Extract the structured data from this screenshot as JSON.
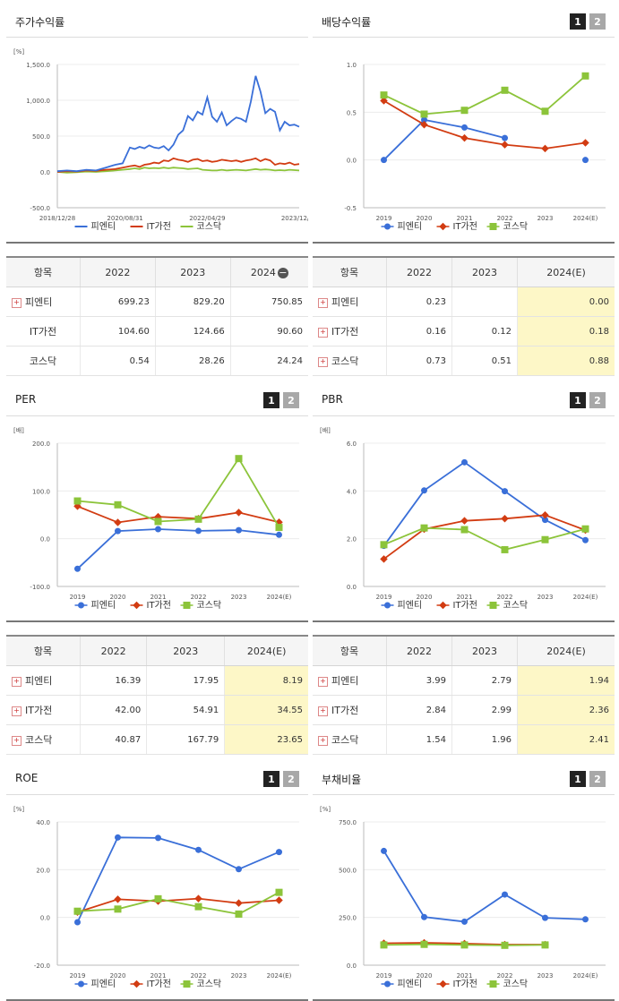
{
  "legend_labels": [
    "피엔티",
    "IT가전",
    "코스닥"
  ],
  "colors": {
    "s1": "#3a6fd8",
    "s2": "#d23c12",
    "s3": "#8cc43a"
  },
  "pager": {
    "one": "1",
    "two": "2"
  },
  "panels": {
    "price": {
      "title": "주가수익률",
      "chart_data": {
        "type": "line",
        "unit": "[%]",
        "y_ticks": [
          "1,500.0",
          "1,000.0",
          "500.0",
          "0.0",
          "-500.0"
        ],
        "x_ticks": [
          "2018/12/28",
          "2020/08/31",
          "2022/04/29",
          "2023/12/28"
        ],
        "ylim": [
          -500,
          1500
        ],
        "x": [
          0,
          0.04,
          0.08,
          0.12,
          0.16,
          0.2,
          0.24,
          0.27,
          0.3,
          0.32,
          0.34,
          0.36,
          0.38,
          0.4,
          0.42,
          0.44,
          0.46,
          0.48,
          0.5,
          0.52,
          0.54,
          0.56,
          0.58,
          0.6,
          0.62,
          0.64,
          0.66,
          0.68,
          0.7,
          0.72,
          0.74,
          0.76,
          0.78,
          0.8,
          0.82,
          0.84,
          0.86,
          0.88,
          0.9,
          0.92,
          0.94,
          0.96,
          0.98,
          1.0
        ],
        "series": [
          {
            "name": "피엔티",
            "values": [
              10,
              20,
              10,
              30,
              20,
              60,
              100,
              120,
              340,
              320,
              350,
              330,
              370,
              340,
              330,
              360,
              300,
              380,
              520,
              580,
              780,
              720,
              840,
              800,
              1040,
              770,
              700,
              830,
              650,
              710,
              760,
              740,
              700,
              980,
              1340,
              1120,
              820,
              880,
              840,
              580,
              700,
              650,
              660,
              630
            ]
          },
          {
            "name": "IT가전",
            "values": [
              0,
              10,
              5,
              20,
              15,
              30,
              40,
              60,
              80,
              90,
              70,
              100,
              110,
              130,
              120,
              160,
              150,
              190,
              170,
              160,
              140,
              170,
              180,
              150,
              160,
              140,
              150,
              170,
              160,
              150,
              160,
              140,
              160,
              170,
              190,
              150,
              180,
              160,
              100,
              120,
              110,
              130,
              100,
              110
            ]
          },
          {
            "name": "코스닥",
            "values": [
              0,
              -10,
              -5,
              5,
              0,
              10,
              20,
              30,
              40,
              50,
              40,
              60,
              50,
              55,
              50,
              60,
              50,
              60,
              55,
              50,
              40,
              45,
              50,
              30,
              25,
              20,
              20,
              30,
              20,
              25,
              30,
              25,
              20,
              30,
              40,
              30,
              35,
              30,
              20,
              25,
              20,
              30,
              25,
              20
            ]
          }
        ]
      }
    },
    "dividend": {
      "title": "배당수익률",
      "chart_data": {
        "type": "line",
        "y_ticks": [
          "1.0",
          "0.5",
          "0.0",
          "-0.5"
        ],
        "categories": [
          "2019",
          "2020",
          "2021",
          "2022",
          "2023",
          "2024(E)"
        ],
        "ylim": [
          -0.5,
          1.0
        ],
        "series": [
          {
            "name": "피엔티",
            "values": [
              0.0,
              0.42,
              0.34,
              0.23,
              null,
              0.0
            ],
            "gap_after": 3
          },
          {
            "name": "IT가전",
            "values": [
              0.62,
              0.37,
              0.23,
              0.16,
              0.12,
              0.18
            ]
          },
          {
            "name": "코스닥",
            "values": [
              0.68,
              0.48,
              0.52,
              0.73,
              0.51,
              0.88
            ]
          }
        ]
      }
    },
    "per": {
      "title": "PER",
      "chart_data": {
        "type": "line",
        "unit": "[배]",
        "y_ticks": [
          "200.0",
          "100.0",
          "0.0",
          "-100.0"
        ],
        "categories": [
          "2019",
          "2020",
          "2021",
          "2022",
          "2023",
          "2024(E)"
        ],
        "ylim": [
          -100,
          200
        ],
        "series": [
          {
            "name": "피엔티",
            "values": [
              -63,
              16,
              20,
              16.39,
              17.95,
              8.19
            ]
          },
          {
            "name": "IT가전",
            "values": [
              68,
              34,
              46,
              42.0,
              54.91,
              34.55
            ]
          },
          {
            "name": "코스닥",
            "values": [
              79,
              71,
              36,
              40.87,
              167.79,
              23.65
            ]
          }
        ]
      }
    },
    "pbr": {
      "title": "PBR",
      "chart_data": {
        "type": "line",
        "unit": "[배]",
        "y_ticks": [
          "6.0",
          "4.0",
          "2.0",
          "0.0"
        ],
        "categories": [
          "2019",
          "2020",
          "2021",
          "2022",
          "2023",
          "2024(E)"
        ],
        "ylim": [
          0,
          6
        ],
        "series": [
          {
            "name": "피엔티",
            "values": [
              1.7,
              4.02,
              5.2,
              3.99,
              2.79,
              1.94
            ]
          },
          {
            "name": "IT가전",
            "values": [
              1.15,
              2.4,
              2.75,
              2.84,
              2.99,
              2.36
            ]
          },
          {
            "name": "코스닥",
            "values": [
              1.75,
              2.45,
              2.38,
              1.54,
              1.96,
              2.41
            ]
          }
        ]
      }
    },
    "roe": {
      "title": "ROE",
      "chart_data": {
        "type": "line",
        "unit": "[%]",
        "y_ticks": [
          "40.0",
          "20.0",
          "0.0",
          "-20.0"
        ],
        "categories": [
          "2019",
          "2020",
          "2021",
          "2022",
          "2023",
          "2024(E)"
        ],
        "ylim": [
          -20,
          40
        ],
        "series": [
          {
            "name": "피엔티",
            "values": [
              -2,
              33.5,
              33.3,
              28.3,
              20.2,
              27.4
            ]
          },
          {
            "name": "IT가전",
            "values": [
              2.2,
              7.6,
              6.8,
              7.9,
              6.0,
              7.2
            ]
          },
          {
            "name": "코스닥",
            "values": [
              2.6,
              3.5,
              7.8,
              4.5,
              1.4,
              10.5
            ]
          }
        ]
      }
    },
    "debt": {
      "title": "부채비율",
      "chart_data": {
        "type": "line",
        "unit": "[%]",
        "y_ticks": [
          "750.0",
          "500.0",
          "250.0",
          "0.0"
        ],
        "categories": [
          "2019",
          "2020",
          "2021",
          "2022",
          "2023",
          "2024(E)"
        ],
        "ylim": [
          0,
          750
        ],
        "series": [
          {
            "name": "피엔티",
            "values": [
              598,
              252,
              228,
              370,
              248,
              240
            ]
          },
          {
            "name": "IT가전",
            "values": [
              115,
              117,
              113,
              108,
              108,
              null
            ]
          },
          {
            "name": "코스닥",
            "values": [
              106,
              109,
              106,
              104,
              106,
              null
            ]
          }
        ]
      }
    }
  },
  "tables": {
    "price": {
      "head": [
        "항목",
        "2022",
        "2023",
        "2024"
      ],
      "rows": [
        {
          "label": "피엔티",
          "plus": true,
          "v": [
            "699.23",
            "829.20",
            "750.85"
          ]
        },
        {
          "label": "IT가전",
          "plus": false,
          "v": [
            "104.60",
            "124.66",
            "90.60"
          ]
        },
        {
          "label": "코스닥",
          "plus": false,
          "v": [
            "0.54",
            "28.26",
            "24.24"
          ]
        }
      ]
    },
    "dividend": {
      "head": [
        "항목",
        "2022",
        "2023",
        "2024(E)"
      ],
      "rows": [
        {
          "label": "피엔티",
          "plus": true,
          "v": [
            "0.23",
            "",
            "0.00"
          ]
        },
        {
          "label": "IT가전",
          "plus": true,
          "v": [
            "0.16",
            "0.12",
            "0.18"
          ]
        },
        {
          "label": "코스닥",
          "plus": true,
          "v": [
            "0.73",
            "0.51",
            "0.88"
          ]
        }
      ]
    },
    "per": {
      "head": [
        "항목",
        "2022",
        "2023",
        "2024(E)"
      ],
      "rows": [
        {
          "label": "피엔티",
          "plus": true,
          "v": [
            "16.39",
            "17.95",
            "8.19"
          ]
        },
        {
          "label": "IT가전",
          "plus": true,
          "v": [
            "42.00",
            "54.91",
            "34.55"
          ]
        },
        {
          "label": "코스닥",
          "plus": true,
          "v": [
            "40.87",
            "167.79",
            "23.65"
          ]
        }
      ]
    },
    "pbr": {
      "head": [
        "항목",
        "2022",
        "2023",
        "2024(E)"
      ],
      "rows": [
        {
          "label": "피엔티",
          "plus": true,
          "v": [
            "3.99",
            "2.79",
            "1.94"
          ]
        },
        {
          "label": "IT가전",
          "plus": true,
          "v": [
            "2.84",
            "2.99",
            "2.36"
          ]
        },
        {
          "label": "코스닥",
          "plus": true,
          "v": [
            "1.54",
            "1.96",
            "2.41"
          ]
        }
      ]
    }
  }
}
